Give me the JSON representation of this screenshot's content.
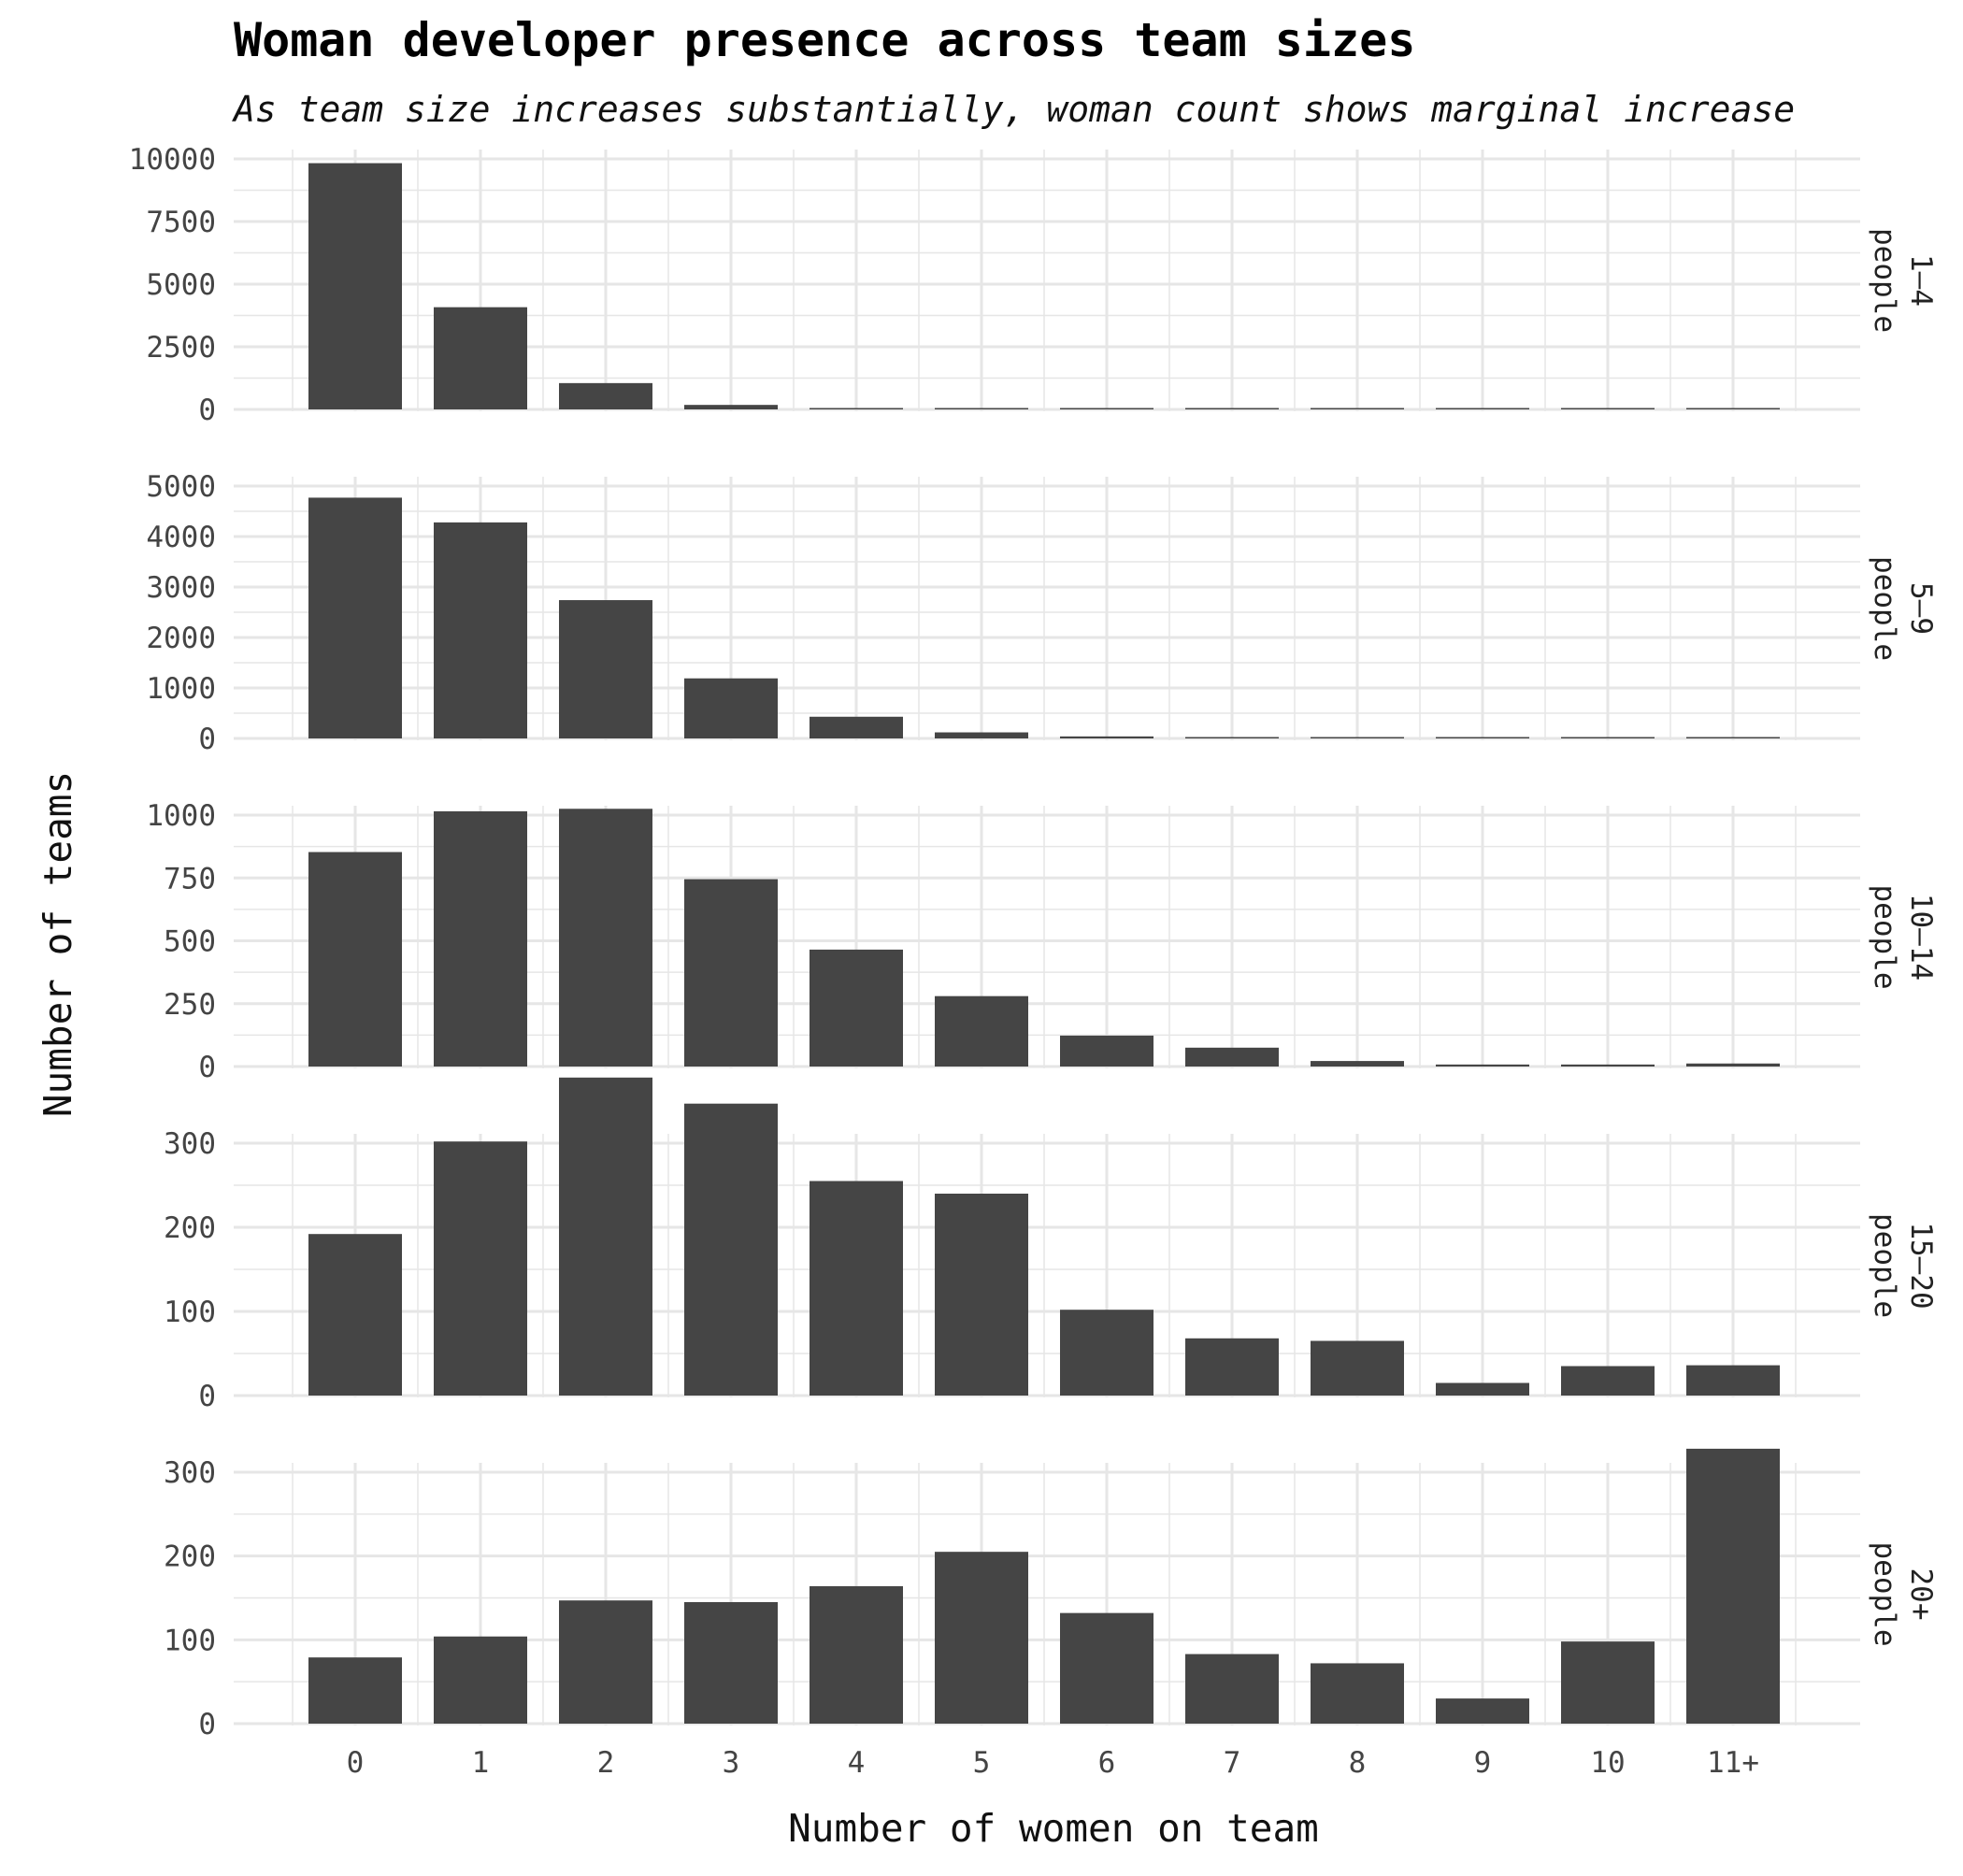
{
  "title": "Woman developer presence across team sizes",
  "subtitle": "As team size increases substantially, woman count shows marginal increase",
  "chart_data": {
    "type": "bar",
    "title": "Woman developer presence across team sizes",
    "subtitle": "As team size increases substantially, woman count shows marginal increase",
    "xlabel": "Number of women on team",
    "ylabel": "Number of teams",
    "categories": [
      "0",
      "1",
      "2",
      "3",
      "4",
      "5",
      "6",
      "7",
      "8",
      "9",
      "10",
      "11+"
    ],
    "bar_color": "#454545",
    "grid_color": "#e6e6e6",
    "grid": true,
    "facets": [
      {
        "label_lines": [
          "1–4",
          "people"
        ],
        "ylim": [
          0,
          10000
        ],
        "yticks": [
          0,
          2500,
          5000,
          7500,
          10000
        ],
        "values": [
          9830,
          4080,
          1050,
          180,
          50,
          20,
          5,
          3,
          2,
          1,
          3,
          18
        ]
      },
      {
        "label_lines": [
          "5–9",
          "people"
        ],
        "ylim": [
          0,
          5000
        ],
        "yticks": [
          0,
          1000,
          2000,
          3000,
          4000,
          5000
        ],
        "values": [
          4770,
          4280,
          2740,
          1190,
          430,
          120,
          40,
          15,
          5,
          2,
          5,
          12
        ]
      },
      {
        "label_lines": [
          "10–14",
          "people"
        ],
        "ylim": [
          0,
          1000
        ],
        "yticks": [
          0,
          250,
          500,
          750,
          1000
        ],
        "values": [
          853,
          1015,
          1025,
          745,
          465,
          280,
          123,
          75,
          22,
          8,
          8,
          12
        ]
      },
      {
        "label_lines": [
          "15–20",
          "people"
        ],
        "ylim": [
          0,
          300
        ],
        "yticks": [
          0,
          100,
          200,
          300
        ],
        "values": [
          192,
          302,
          378,
          347,
          255,
          240,
          102,
          68,
          65,
          15,
          35,
          36
        ]
      },
      {
        "label_lines": [
          "20+",
          "people"
        ],
        "ylim": [
          0,
          300
        ],
        "yticks": [
          0,
          100,
          200,
          300
        ],
        "values": [
          79,
          104,
          147,
          145,
          164,
          205,
          132,
          83,
          72,
          30,
          98,
          328
        ]
      }
    ]
  }
}
